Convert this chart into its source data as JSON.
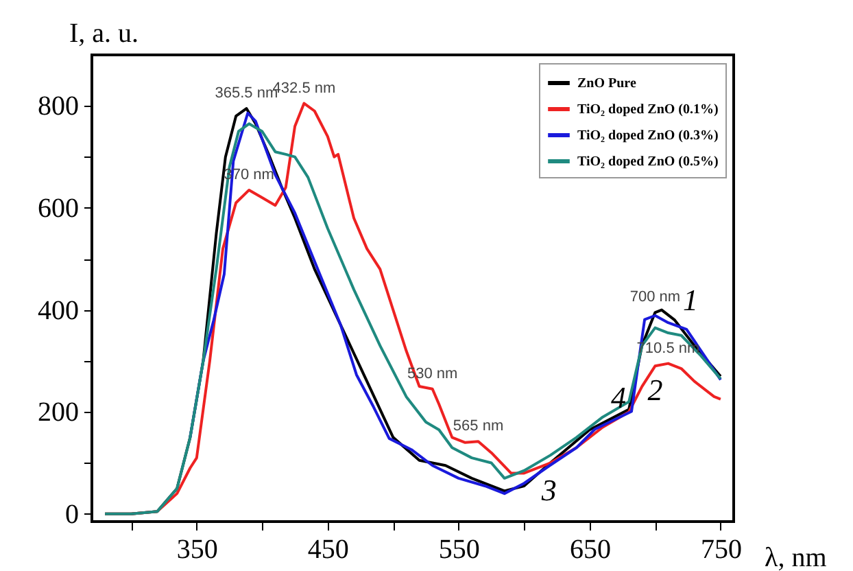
{
  "chart_data": {
    "type": "line",
    "xlabel": "λ, nm",
    "ylabel": "I, a. u.",
    "xlim": [
      270,
      760
    ],
    "ylim": [
      -15,
      900
    ],
    "xticks": [
      {
        "value": 300,
        "label": null
      },
      350,
      {
        "value": 400,
        "label": null
      },
      450,
      {
        "value": 500,
        "label": null
      },
      550,
      {
        "value": 600,
        "label": null
      },
      650,
      {
        "value": 700,
        "label": null
      },
      750
    ],
    "yticks": [
      0,
      {
        "value": 100,
        "label": null
      },
      200,
      {
        "value": 300,
        "label": null
      },
      400,
      {
        "value": 500,
        "label": null
      },
      600,
      {
        "value": 700,
        "label": null
      },
      800
    ],
    "grid": false,
    "legend": "top right",
    "line_style": "solid",
    "marker": "none",
    "series": [
      {
        "name": "ZnO Pure",
        "color": "#000000",
        "x": [
          280,
          300,
          320,
          335,
          345,
          355,
          365,
          372,
          380,
          388,
          395,
          405,
          415,
          425,
          440,
          460,
          480,
          500,
          520,
          540,
          560,
          585,
          600,
          620,
          650,
          680,
          690,
          700,
          705,
          715,
          730,
          750
        ],
        "values": [
          0,
          0,
          5,
          50,
          150,
          300,
          550,
          700,
          780,
          795,
          765,
          705,
          640,
          580,
          480,
          370,
          260,
          150,
          105,
          95,
          70,
          45,
          55,
          100,
          165,
          205,
          330,
          395,
          400,
          380,
          330,
          270
        ]
      },
      {
        "name": "TiO₂ doped ZnO (0.1%)",
        "color": "#ee2222",
        "x": [
          280,
          300,
          320,
          335,
          345,
          350,
          360,
          370,
          380,
          390,
          400,
          410,
          418,
          425,
          432,
          440,
          450,
          455,
          458,
          470,
          480,
          490,
          500,
          510,
          520,
          530,
          535,
          545,
          555,
          565,
          575,
          590,
          600,
          620,
          640,
          660,
          680,
          690,
          700,
          710,
          720,
          730,
          745,
          750
        ],
        "values": [
          0,
          0,
          5,
          40,
          90,
          110,
          300,
          520,
          610,
          635,
          620,
          605,
          640,
          760,
          805,
          790,
          740,
          700,
          705,
          580,
          520,
          480,
          400,
          320,
          250,
          245,
          215,
          150,
          140,
          142,
          120,
          80,
          80,
          100,
          130,
          170,
          200,
          250,
          290,
          295,
          285,
          260,
          230,
          225
        ]
      },
      {
        "name": "TiO₂ doped ZnO (0.3%)",
        "color": "#1a1adc",
        "x": [
          345,
          355,
          363,
          371,
          378,
          389,
          395,
          410,
          425,
          444,
          460,
          472,
          485,
          497,
          514,
          530,
          550,
          570,
          585,
          600,
          619,
          640,
          654,
          682,
          692,
          700,
          710,
          724,
          750
        ],
        "values": [
          150,
          300,
          380,
          470,
          692,
          786,
          770,
          665,
          590,
          470,
          370,
          273,
          210,
          148,
          126,
          95,
          70,
          55,
          40,
          60,
          94,
          130,
          166,
          201,
          381,
          389,
          375,
          362,
          263
        ]
      },
      {
        "name": "TiO₂ doped ZnO (0.5%)",
        "color": "#1f8a80",
        "x": [
          280,
          300,
          320,
          335,
          345,
          355,
          365,
          375,
          382,
          390,
          400,
          410,
          418,
          425,
          435,
          450,
          470,
          490,
          510,
          525,
          535,
          545,
          560,
          575,
          585,
          600,
          620,
          640,
          660,
          680,
          690,
          700,
          710,
          720,
          735,
          750
        ],
        "values": [
          0,
          0,
          5,
          50,
          150,
          300,
          480,
          680,
          750,
          765,
          750,
          710,
          705,
          700,
          660,
          560,
          440,
          330,
          230,
          180,
          165,
          130,
          110,
          100,
          70,
          85,
          115,
          150,
          190,
          220,
          330,
          365,
          355,
          350,
          310,
          265
        ]
      }
    ],
    "annotations": [
      {
        "text": "365.5 nm",
        "x": 388,
        "y": 795
      },
      {
        "text": "432.5 nm",
        "x": 432,
        "y": 805
      },
      {
        "text": "370 nm",
        "x": 390,
        "y": 635
      },
      {
        "text": "530 nm",
        "x": 530,
        "y": 245
      },
      {
        "text": "565 nm",
        "x": 565,
        "y": 142
      },
      {
        "text": "700 nm",
        "x": 700,
        "y": 395
      },
      {
        "text": "710.5 nm",
        "x": 710,
        "y": 295
      },
      {
        "text": "1",
        "x": 715,
        "y": 380
      },
      {
        "text": "2",
        "x": 700,
        "y": 290
      },
      {
        "text": "3",
        "x": 619,
        "y": 94
      },
      {
        "text": "4",
        "x": 660,
        "y": 190
      }
    ]
  }
}
